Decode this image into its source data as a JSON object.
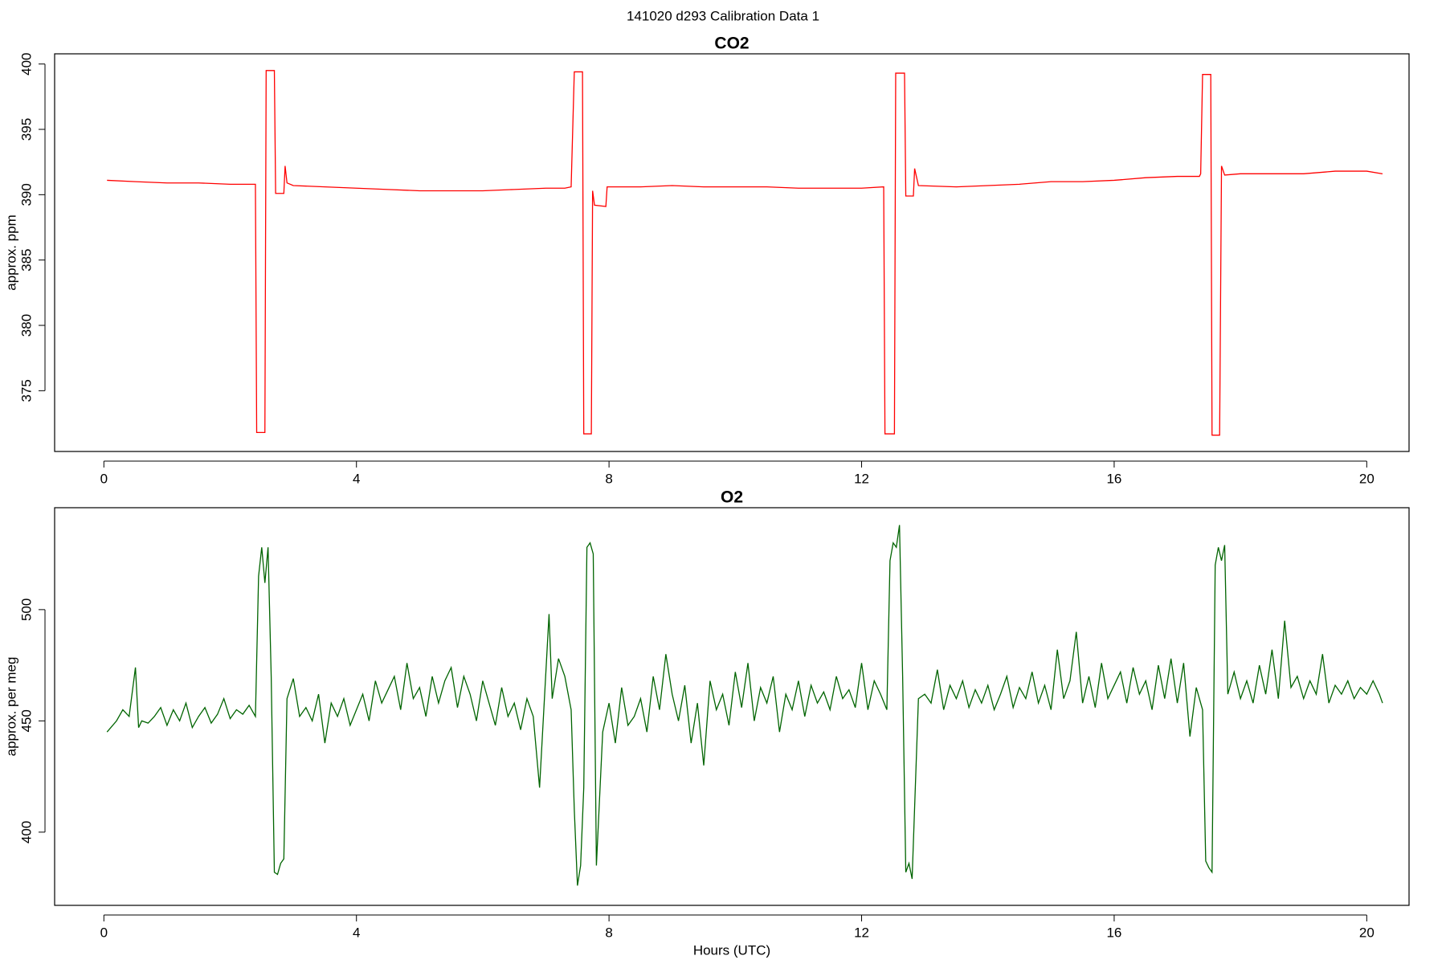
{
  "title": "141020   d293   Calibration Data 1",
  "chart_data": [
    {
      "type": "line",
      "title": "CO2",
      "y_label": "approx. ppm",
      "xlim": [
        -0.78,
        20.67
      ],
      "xticks": [
        0,
        4,
        8,
        12,
        16,
        20
      ],
      "ylim": [
        370.35,
        400.78
      ],
      "yticks": [
        375,
        380,
        385,
        390,
        395,
        400
      ],
      "series": [
        {
          "name": "CO2",
          "color": "#ff0000",
          "x": [
            0.05,
            0.5,
            1,
            1.5,
            2,
            2.4,
            2.42,
            2.55,
            2.57,
            2.7,
            2.72,
            2.85,
            2.87,
            2.9,
            3,
            3.5,
            4,
            4.5,
            5,
            5.5,
            6,
            6.5,
            7,
            7.3,
            7.4,
            7.45,
            7.58,
            7.6,
            7.72,
            7.74,
            7.77,
            7.95,
            7.97,
            8.5,
            9,
            9.5,
            10,
            10.5,
            11,
            11.5,
            12,
            12.35,
            12.37,
            12.52,
            12.54,
            12.68,
            12.7,
            12.82,
            12.84,
            12.9,
            13.5,
            14,
            14.5,
            15,
            15.5,
            16,
            16.5,
            17,
            17.35,
            17.37,
            17.4,
            17.53,
            17.55,
            17.67,
            17.7,
            17.75,
            18,
            18.5,
            19,
            19.5,
            20,
            20.25
          ],
          "values": [
            391.1,
            391.0,
            390.9,
            390.9,
            390.8,
            390.8,
            371.8,
            371.8,
            399.5,
            399.5,
            390.1,
            390.1,
            392.2,
            390.9,
            390.7,
            390.6,
            390.5,
            390.4,
            390.3,
            390.3,
            390.3,
            390.4,
            390.5,
            390.5,
            390.6,
            399.4,
            399.4,
            371.7,
            371.7,
            390.3,
            389.2,
            389.1,
            390.6,
            390.6,
            390.7,
            390.6,
            390.6,
            390.6,
            390.5,
            390.5,
            390.5,
            390.6,
            371.7,
            371.7,
            399.3,
            399.3,
            389.9,
            389.9,
            392.0,
            390.7,
            390.6,
            390.7,
            390.8,
            391.0,
            391.0,
            391.1,
            391.3,
            391.4,
            391.4,
            391.6,
            399.2,
            399.2,
            371.6,
            371.6,
            392.2,
            391.5,
            391.6,
            391.6,
            391.6,
            391.8,
            391.8,
            391.6
          ]
        }
      ]
    },
    {
      "type": "line",
      "title": "O2",
      "y_label": "approx. per meg",
      "x_label": "Hours (UTC)",
      "xlim": [
        -0.78,
        20.67
      ],
      "xticks": [
        0,
        4,
        8,
        12,
        16,
        20
      ],
      "ylim": [
        367.1,
        545.8
      ],
      "yticks": [
        400,
        450,
        500
      ],
      "series": [
        {
          "name": "O2",
          "color": "#006400",
          "x": [
            0.05,
            0.2,
            0.3,
            0.4,
            0.5,
            0.55,
            0.6,
            0.7,
            0.8,
            0.9,
            1.0,
            1.1,
            1.2,
            1.3,
            1.4,
            1.5,
            1.6,
            1.7,
            1.8,
            1.9,
            2.0,
            2.1,
            2.2,
            2.3,
            2.4,
            2.45,
            2.5,
            2.55,
            2.6,
            2.65,
            2.7,
            2.75,
            2.8,
            2.85,
            2.9,
            3.0,
            3.1,
            3.2,
            3.3,
            3.4,
            3.5,
            3.6,
            3.7,
            3.8,
            3.9,
            4.0,
            4.1,
            4.2,
            4.3,
            4.4,
            4.5,
            4.6,
            4.7,
            4.8,
            4.9,
            5.0,
            5.1,
            5.2,
            5.3,
            5.4,
            5.5,
            5.6,
            5.7,
            5.8,
            5.9,
            6.0,
            6.1,
            6.2,
            6.3,
            6.4,
            6.5,
            6.6,
            6.7,
            6.8,
            6.9,
            7.0,
            7.05,
            7.1,
            7.2,
            7.3,
            7.4,
            7.45,
            7.5,
            7.55,
            7.6,
            7.65,
            7.7,
            7.75,
            7.8,
            7.9,
            8.0,
            8.1,
            8.2,
            8.3,
            8.4,
            8.5,
            8.6,
            8.7,
            8.8,
            8.9,
            9.0,
            9.1,
            9.2,
            9.3,
            9.4,
            9.5,
            9.6,
            9.7,
            9.8,
            9.9,
            10.0,
            10.1,
            10.2,
            10.3,
            10.4,
            10.5,
            10.6,
            10.7,
            10.8,
            10.9,
            11.0,
            11.1,
            11.2,
            11.3,
            11.4,
            11.5,
            11.6,
            11.7,
            11.8,
            11.9,
            12.0,
            12.1,
            12.2,
            12.3,
            12.4,
            12.45,
            12.5,
            12.55,
            12.6,
            12.65,
            12.7,
            12.75,
            12.8,
            12.9,
            13.0,
            13.1,
            13.2,
            13.3,
            13.4,
            13.5,
            13.6,
            13.7,
            13.8,
            13.9,
            14.0,
            14.1,
            14.2,
            14.3,
            14.4,
            14.5,
            14.6,
            14.7,
            14.8,
            14.9,
            15.0,
            15.1,
            15.2,
            15.3,
            15.4,
            15.5,
            15.6,
            15.7,
            15.8,
            15.9,
            16.0,
            16.1,
            16.2,
            16.3,
            16.4,
            16.5,
            16.6,
            16.7,
            16.8,
            16.9,
            17.0,
            17.1,
            17.2,
            17.3,
            17.4,
            17.45,
            17.5,
            17.55,
            17.6,
            17.65,
            17.7,
            17.75,
            17.8,
            17.9,
            18.0,
            18.1,
            18.2,
            18.3,
            18.4,
            18.5,
            18.6,
            18.7,
            18.8,
            18.9,
            19.0,
            19.1,
            19.2,
            19.3,
            19.4,
            19.5,
            19.6,
            19.7,
            19.8,
            19.9,
            20.0,
            20.1,
            20.2,
            20.25
          ],
          "values": [
            445,
            450,
            455,
            452,
            474,
            447,
            450,
            449,
            452,
            456,
            448,
            455,
            450,
            458,
            447,
            452,
            456,
            449,
            453,
            460,
            451,
            455,
            453,
            457,
            452,
            515,
            528,
            512,
            528,
            470,
            382,
            381,
            386,
            388,
            460,
            469,
            452,
            456,
            450,
            462,
            440,
            458,
            452,
            460,
            448,
            455,
            462,
            450,
            468,
            458,
            464,
            470,
            455,
            476,
            460,
            465,
            452,
            470,
            458,
            468,
            474,
            456,
            470,
            462,
            450,
            468,
            458,
            448,
            465,
            452,
            458,
            446,
            460,
            452,
            420,
            472,
            498,
            460,
            478,
            470,
            455,
            410,
            376,
            385,
            420,
            528,
            530,
            525,
            385,
            445,
            458,
            440,
            465,
            448,
            452,
            460,
            445,
            470,
            455,
            480,
            462,
            450,
            466,
            440,
            458,
            430,
            468,
            455,
            462,
            448,
            472,
            456,
            476,
            450,
            465,
            458,
            470,
            445,
            462,
            455,
            468,
            452,
            466,
            458,
            463,
            455,
            470,
            460,
            464,
            456,
            476,
            455,
            468,
            462,
            455,
            522,
            530,
            528,
            538,
            470,
            382,
            386,
            379,
            460,
            462,
            458,
            473,
            455,
            466,
            460,
            468,
            456,
            464,
            458,
            466,
            455,
            462,
            470,
            456,
            465,
            460,
            472,
            458,
            466,
            455,
            482,
            460,
            468,
            490,
            458,
            470,
            456,
            476,
            460,
            466,
            472,
            458,
            474,
            462,
            468,
            455,
            475,
            460,
            478,
            458,
            476,
            443,
            465,
            455,
            387,
            384,
            382,
            520,
            528,
            522,
            529,
            462,
            472,
            460,
            468,
            458,
            475,
            462,
            482,
            460,
            495,
            465,
            470,
            460,
            468,
            462,
            480,
            458,
            466,
            462,
            468,
            460,
            465,
            462,
            468,
            462,
            458
          ]
        }
      ]
    }
  ]
}
